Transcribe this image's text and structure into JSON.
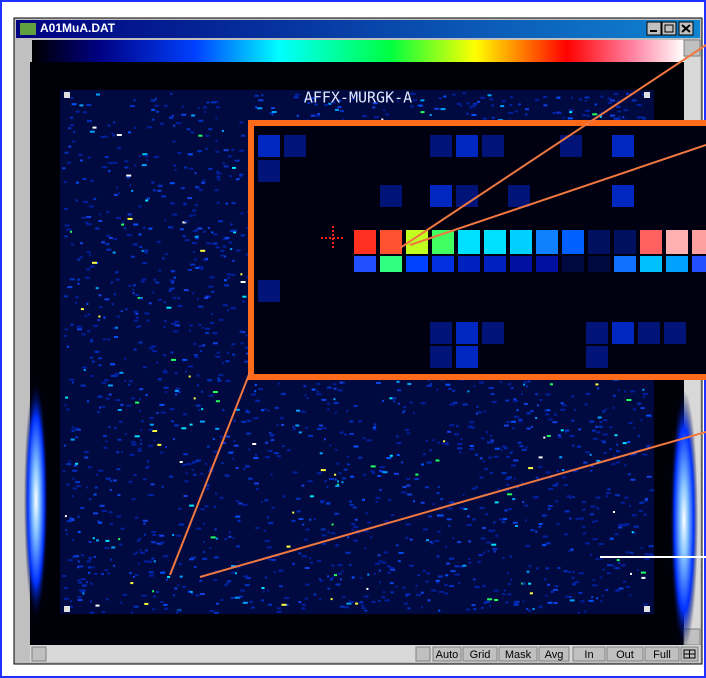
{
  "window": {
    "title": "A01MuA.DAT"
  },
  "image": {
    "chip_label": "AFFX-MURGK-A"
  },
  "toolbar": {
    "buttons": [
      "Auto",
      "Grid",
      "Mask",
      "Avg",
      "In",
      "Out",
      "Full"
    ]
  }
}
